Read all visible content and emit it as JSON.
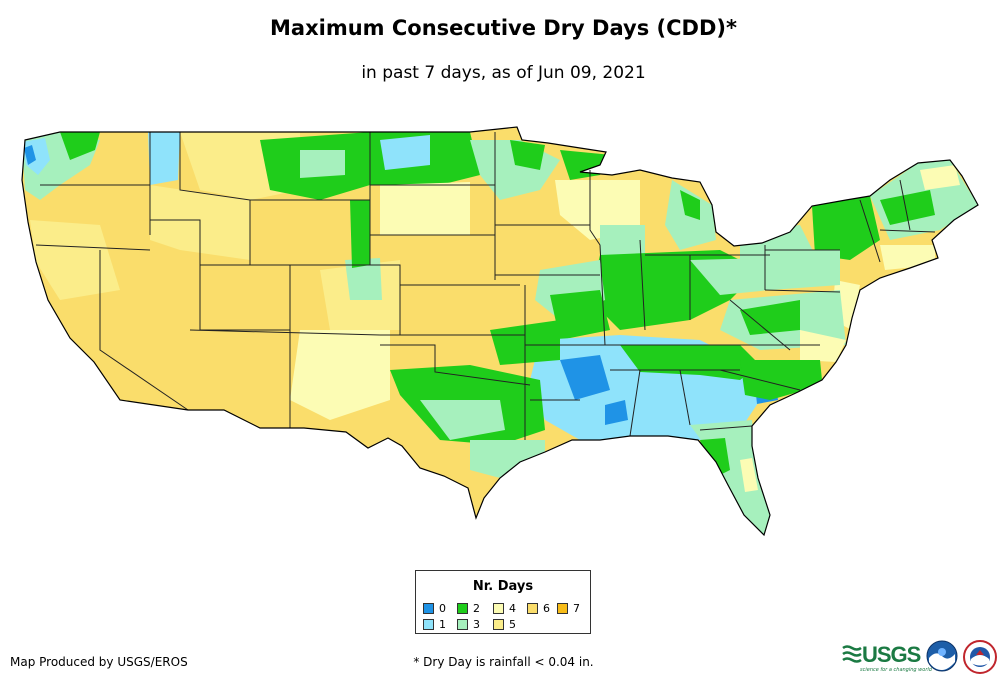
{
  "title": "Maximum Consecutive Dry Days (CDD)*",
  "subtitle": "in past 7 days, as of Jun 09, 2021",
  "legend": {
    "title": "Nr. Days",
    "items": [
      {
        "label": "0",
        "color": "#1f93e6"
      },
      {
        "label": "1",
        "color": "#8fe3fb"
      },
      {
        "label": "2",
        "color": "#1fcd1b"
      },
      {
        "label": "3",
        "color": "#a6f0bd"
      },
      {
        "label": "4",
        "color": "#fcfcb4"
      },
      {
        "label": "5",
        "color": "#fbed8a"
      },
      {
        "label": "6",
        "color": "#fadd6b"
      },
      {
        "label": "7",
        "color": "#f7bc18"
      }
    ]
  },
  "credit": "Map Produced by USGS/EROS",
  "footnote": "* Dry Day is rainfall < 0.04 in.",
  "logos": {
    "usgs": "USGS",
    "usgs_tagline": "science for a changing world",
    "noaa": "NOAA",
    "nws": "NWS"
  }
}
